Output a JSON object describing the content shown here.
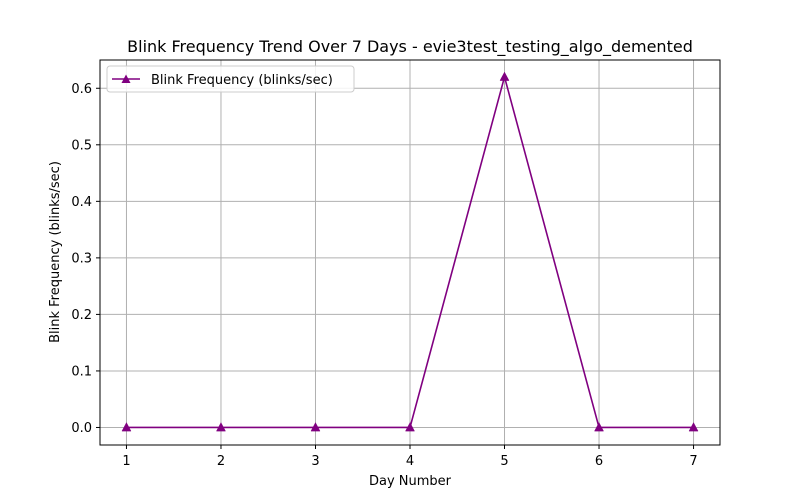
{
  "chart_data": {
    "type": "line",
    "title": "Blink Frequency Trend Over 7 Days - evie3test_testing_algo_demented",
    "xlabel": "Day Number",
    "ylabel": "Blink Frequency (blinks/sec)",
    "x": [
      1,
      2,
      3,
      4,
      5,
      6,
      7
    ],
    "xticks": [
      "1",
      "2",
      "3",
      "4",
      "5",
      "6",
      "7"
    ],
    "yticks": [
      "0.0",
      "0.1",
      "0.2",
      "0.3",
      "0.4",
      "0.5",
      "0.6"
    ],
    "xlim": [
      0.72,
      7.28
    ],
    "ylim": [
      -0.031,
      0.65
    ],
    "grid": true,
    "legend_position": "top-left",
    "series": [
      {
        "name": "Blink Frequency (blinks/sec)",
        "color": "#800080",
        "marker": "triangle-up",
        "values": [
          0.0,
          0.0,
          0.0,
          0.0,
          0.62,
          0.0,
          0.0
        ]
      }
    ]
  }
}
